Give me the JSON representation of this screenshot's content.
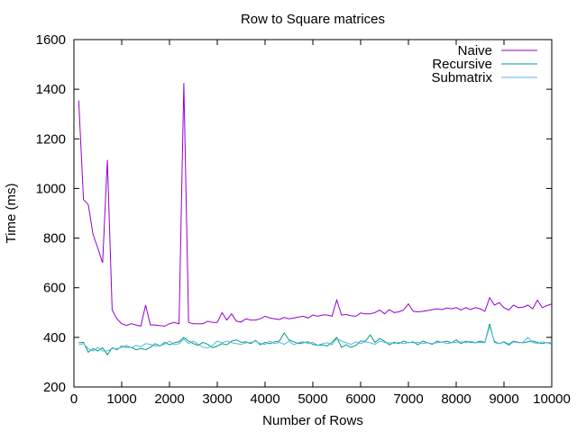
{
  "chart_data": {
    "type": "line",
    "title": "Row to Square matrices",
    "xlabel": "Number of Rows",
    "ylabel": "Time (ms)",
    "xlim": [
      0,
      10000
    ],
    "ylim": [
      200,
      1600
    ],
    "xticks": [
      0,
      1000,
      2000,
      3000,
      4000,
      5000,
      6000,
      7000,
      8000,
      9000,
      10000
    ],
    "yticks": [
      200,
      400,
      600,
      800,
      1000,
      1200,
      1400,
      1600
    ],
    "grid": false,
    "legend_position": "top-right",
    "x": [
      100,
      200,
      300,
      400,
      500,
      600,
      700,
      800,
      900,
      1000,
      1100,
      1200,
      1300,
      1400,
      1500,
      1600,
      1700,
      1800,
      1900,
      2000,
      2100,
      2200,
      2300,
      2400,
      2500,
      2600,
      2700,
      2800,
      2900,
      3000,
      3100,
      3200,
      3300,
      3400,
      3500,
      3600,
      3700,
      3800,
      3900,
      4000,
      4100,
      4200,
      4300,
      4400,
      4500,
      4600,
      4700,
      4800,
      4900,
      5000,
      5100,
      5200,
      5300,
      5400,
      5500,
      5600,
      5700,
      5800,
      5900,
      6000,
      6100,
      6200,
      6300,
      6400,
      6500,
      6600,
      6700,
      6800,
      6900,
      7000,
      7100,
      7200,
      7300,
      7400,
      7500,
      7600,
      7700,
      7800,
      7900,
      8000,
      8100,
      8200,
      8300,
      8400,
      8500,
      8600,
      8700,
      8800,
      8900,
      9000,
      9100,
      9200,
      9300,
      9400,
      9500,
      9600,
      9700,
      9800,
      9900,
      10000
    ],
    "series": [
      {
        "name": "Naive",
        "color": "#9400d3",
        "values": [
          1355,
          955,
          935,
          815,
          760,
          700,
          1115,
          510,
          475,
          455,
          448,
          455,
          450,
          445,
          530,
          450,
          450,
          447,
          445,
          455,
          460,
          455,
          1425,
          460,
          455,
          455,
          455,
          465,
          460,
          460,
          500,
          470,
          495,
          465,
          462,
          475,
          470,
          470,
          475,
          485,
          478,
          475,
          472,
          480,
          475,
          478,
          482,
          485,
          478,
          490,
          485,
          490,
          490,
          485,
          550,
          490,
          492,
          487,
          485,
          498,
          495,
          495,
          500,
          510,
          495,
          512,
          500,
          503,
          510,
          535,
          505,
          503,
          505,
          508,
          512,
          515,
          512,
          518,
          515,
          520,
          510,
          520,
          512,
          520,
          515,
          505,
          560,
          530,
          540,
          520,
          510,
          530,
          520,
          522,
          530,
          515,
          550,
          520,
          528,
          535
        ]
      },
      {
        "name": "Recursive",
        "color": "#009e73",
        "values": [
          378,
          380,
          340,
          355,
          345,
          358,
          330,
          358,
          350,
          365,
          360,
          360,
          350,
          355,
          350,
          360,
          375,
          365,
          380,
          370,
          378,
          382,
          400,
          385,
          375,
          368,
          380,
          372,
          358,
          365,
          375,
          370,
          385,
          390,
          380,
          382,
          375,
          388,
          370,
          380,
          375,
          382,
          385,
          418,
          390,
          382,
          375,
          378,
          382,
          372,
          368,
          370,
          365,
          380,
          400,
          360,
          370,
          360,
          368,
          385,
          385,
          410,
          380,
          395,
          385,
          370,
          380,
          375,
          385,
          378,
          382,
          370,
          385,
          378,
          372,
          385,
          380,
          385,
          378,
          390,
          375,
          385,
          380,
          378,
          385,
          380,
          455,
          380,
          375,
          382,
          372,
          385,
          380,
          378,
          382,
          385,
          380,
          375,
          380,
          372
        ]
      },
      {
        "name": "Submatrix",
        "color": "#56b4e9",
        "values": [
          370,
          375,
          355,
          345,
          360,
          345,
          345,
          355,
          355,
          360,
          368,
          358,
          368,
          362,
          375,
          372,
          365,
          368,
          372,
          385,
          370,
          375,
          393,
          375,
          385,
          372,
          360,
          358,
          368,
          385,
          378,
          385,
          378,
          375,
          372,
          378,
          380,
          385,
          375,
          372,
          385,
          375,
          380,
          372,
          385,
          370,
          378,
          382,
          375,
          380,
          368,
          375,
          378,
          370,
          395,
          385,
          378,
          372,
          382,
          375,
          382,
          378,
          372,
          385,
          380,
          378,
          375,
          380,
          375,
          380,
          378,
          380,
          375,
          378,
          375,
          378,
          382,
          375,
          378,
          380,
          382,
          378,
          385,
          378,
          380,
          378,
          445,
          385,
          375,
          380,
          368,
          382,
          378,
          380,
          400,
          380,
          375,
          382,
          378,
          380
        ]
      }
    ]
  }
}
